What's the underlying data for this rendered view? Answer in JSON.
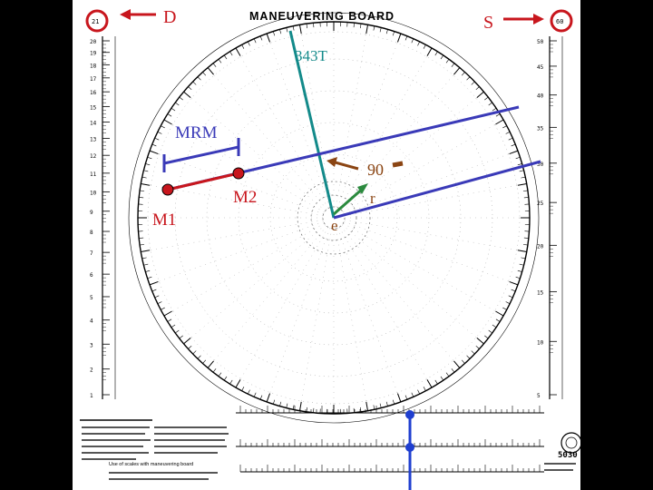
{
  "header": {
    "title": "MANEUVERING BOARD"
  },
  "scales": {
    "left_label": "D",
    "right_label": "S",
    "left_top_tick": "21",
    "right_top_tick": "60",
    "left_ticks": [
      "20",
      "19",
      "18",
      "17",
      "16",
      "15",
      "14",
      "13",
      "12",
      "11",
      "10",
      "9",
      "8",
      "7",
      "6",
      "5",
      "4",
      "3",
      "2",
      "1"
    ],
    "right_ticks": [
      "50",
      "45",
      "40",
      "35",
      "30",
      "25",
      "20",
      "15",
      "10",
      "5"
    ]
  },
  "labels": {
    "bearing": "343T",
    "mrm": "MRM",
    "m1": "M1",
    "m2": "M2",
    "ninety": "90",
    "e": "e",
    "r": "r"
  },
  "footer": {
    "board_number": "5030",
    "note": "Use of scales with maneuvering board"
  },
  "colors": {
    "red": "#c8161d",
    "blue": "#3a3ab8",
    "teal": "#138a8a",
    "green": "#2b8a3e",
    "brown": "#8b4513",
    "marker_blue": "#1f3fd0"
  }
}
